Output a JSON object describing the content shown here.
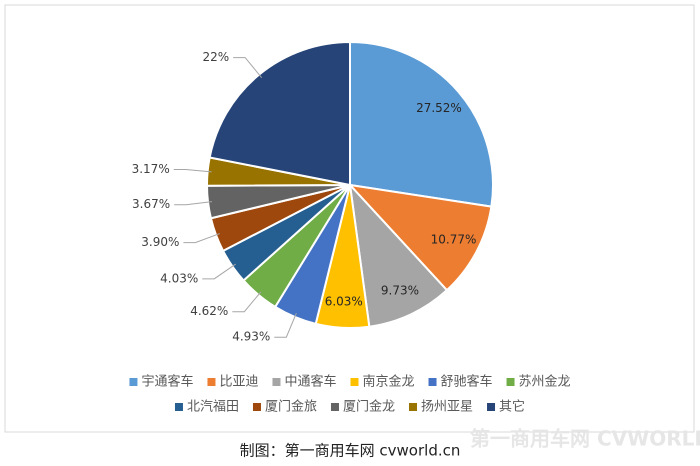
{
  "chart_data": {
    "type": "pie",
    "categories": [
      "宇通客车",
      "比亚迪",
      "中通客车",
      "南京金龙",
      "舒驰客车",
      "苏州金龙",
      "北汽福田",
      "厦门金旅",
      "厦门金龙",
      "扬州亚星",
      "其它"
    ],
    "values": [
      27.52,
      10.77,
      9.73,
      6.03,
      4.93,
      4.62,
      4.03,
      3.9,
      3.67,
      3.17,
      22
    ],
    "value_labels": [
      "27.52%",
      "10.77%",
      "9.73%",
      "6.03%",
      "4.93%",
      "4.62%",
      "4.03%",
      "3.90%",
      "3.67%",
      "3.17%",
      "22%"
    ],
    "colors": [
      "#5b9bd5",
      "#ed7d31",
      "#a5a5a5",
      "#ffc000",
      "#4472c4",
      "#70ad47",
      "#255e91",
      "#9e480e",
      "#636363",
      "#997300",
      "#264478"
    ],
    "legend": "bottom"
  },
  "caption": "制图：第一商用车网 cvworld.cn",
  "watermark": "第一商用车网 CVWORLD.CN"
}
